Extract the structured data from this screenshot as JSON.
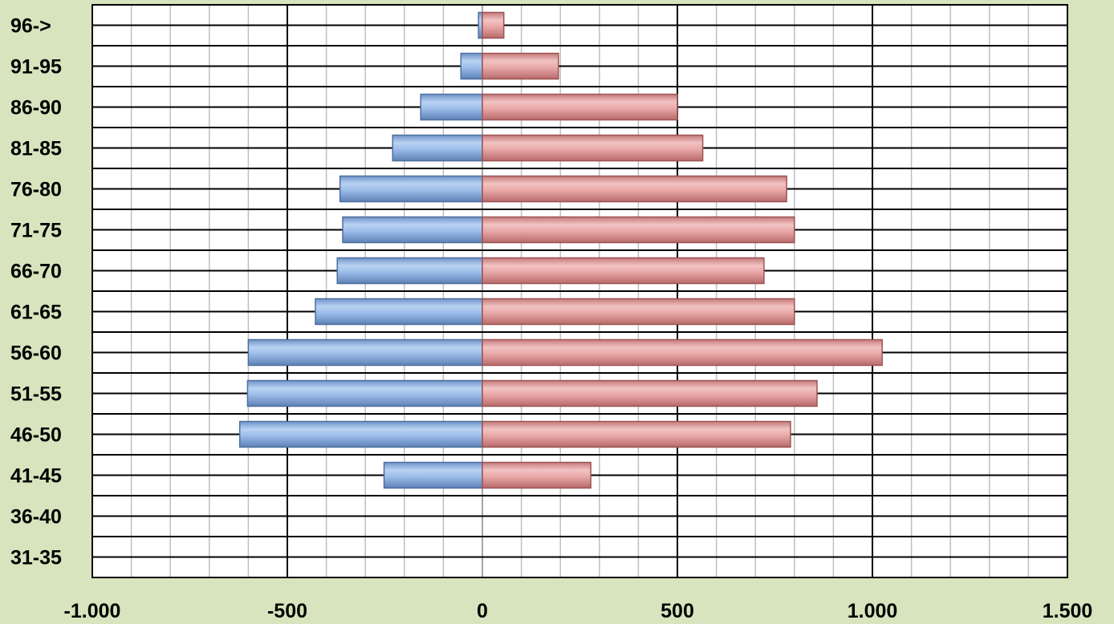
{
  "chart_data": {
    "type": "bar",
    "orientation": "horizontal",
    "title": "",
    "xlabel": "",
    "ylabel": "",
    "categories": [
      "31-35",
      "36-40",
      "41-45",
      "46-50",
      "51-55",
      "56-60",
      "61-65",
      "66-70",
      "71-75",
      "76-80",
      "81-85",
      "86-90",
      "91-95",
      "96->"
    ],
    "series": [
      {
        "values": [
          0,
          0,
          -252,
          -622,
          -602,
          -600,
          -428,
          -372,
          -358,
          -365,
          -230,
          -158,
          -55,
          -10
        ],
        "color": "#8fb4e3"
      },
      {
        "values": [
          0,
          0,
          278,
          790,
          858,
          1025,
          800,
          722,
          800,
          780,
          565,
          500,
          195,
          55
        ],
        "color": "#e6a0a0"
      }
    ],
    "xlim": [
      -1000,
      1500
    ],
    "x_ticks": [
      -1000,
      -500,
      0,
      500,
      1000,
      1500
    ],
    "x_tick_labels": [
      "-1.000",
      "-500",
      "0",
      "500",
      "1.000",
      "1.500"
    ],
    "x_minor_step": 100,
    "grid": true,
    "legend": "none"
  }
}
